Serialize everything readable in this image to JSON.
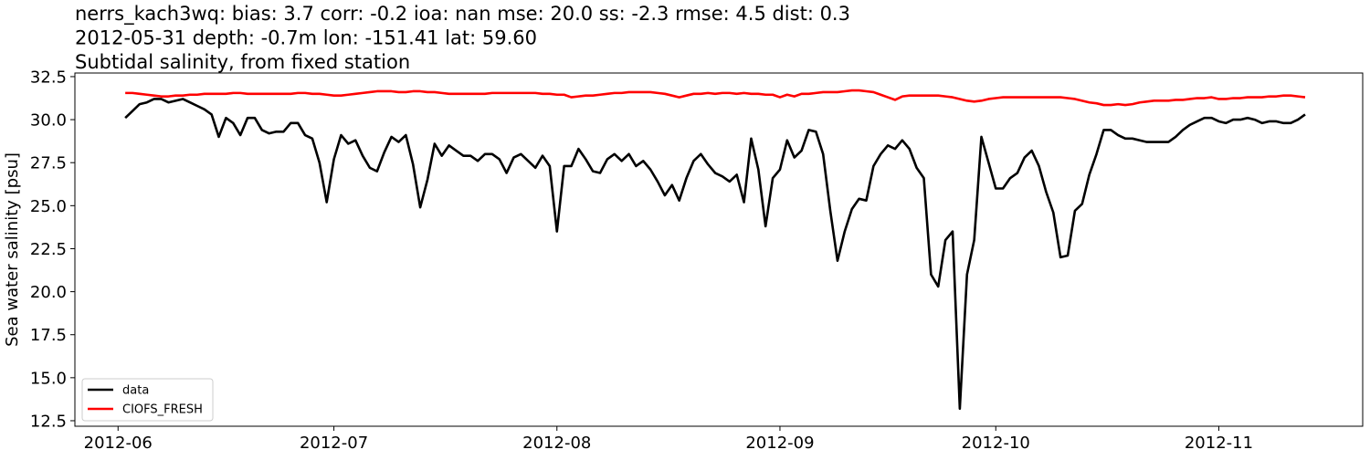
{
  "chart_data": {
    "type": "line",
    "title": [
      "nerrs_kach3wq: bias: 3.7  corr: -0.2  ioa: nan  mse: 20.0  ss: -2.3  rmse: 4.5  dist: 0.3",
      "2012-05-31 depth: -0.7m lon: -151.41 lat: 59.60",
      "Subtidal salinity, from fixed station"
    ],
    "ylabel": "Sea water salinity [psu]",
    "x": [
      "2012-06-02",
      "2012-06-03",
      "2012-06-04",
      "2012-06-05",
      "2012-06-06",
      "2012-06-07",
      "2012-06-08",
      "2012-06-09",
      "2012-06-10",
      "2012-06-11",
      "2012-06-12",
      "2012-06-13",
      "2012-06-14",
      "2012-06-15",
      "2012-06-16",
      "2012-06-17",
      "2012-06-18",
      "2012-06-19",
      "2012-06-20",
      "2012-06-21",
      "2012-06-22",
      "2012-06-23",
      "2012-06-24",
      "2012-06-25",
      "2012-06-26",
      "2012-06-27",
      "2012-06-28",
      "2012-06-29",
      "2012-06-30",
      "2012-07-01",
      "2012-07-02",
      "2012-07-03",
      "2012-07-04",
      "2012-07-05",
      "2012-07-06",
      "2012-07-07",
      "2012-07-08",
      "2012-07-09",
      "2012-07-10",
      "2012-07-11",
      "2012-07-12",
      "2012-07-13",
      "2012-07-14",
      "2012-07-15",
      "2012-07-16",
      "2012-07-17",
      "2012-07-18",
      "2012-07-19",
      "2012-07-20",
      "2012-07-21",
      "2012-07-22",
      "2012-07-23",
      "2012-07-24",
      "2012-07-25",
      "2012-07-26",
      "2012-07-27",
      "2012-07-28",
      "2012-07-29",
      "2012-07-30",
      "2012-07-31",
      "2012-08-01",
      "2012-08-02",
      "2012-08-03",
      "2012-08-04",
      "2012-08-05",
      "2012-08-06",
      "2012-08-07",
      "2012-08-08",
      "2012-08-09",
      "2012-08-10",
      "2012-08-11",
      "2012-08-12",
      "2012-08-13",
      "2012-08-14",
      "2012-08-15",
      "2012-08-16",
      "2012-08-17",
      "2012-08-18",
      "2012-08-19",
      "2012-08-20",
      "2012-08-21",
      "2012-08-22",
      "2012-08-23",
      "2012-08-24",
      "2012-08-25",
      "2012-08-26",
      "2012-08-27",
      "2012-08-28",
      "2012-08-29",
      "2012-08-30",
      "2012-08-31",
      "2012-09-01",
      "2012-09-02",
      "2012-09-03",
      "2012-09-04",
      "2012-09-05",
      "2012-09-06",
      "2012-09-07",
      "2012-09-08",
      "2012-09-09",
      "2012-09-10",
      "2012-09-11",
      "2012-09-12",
      "2012-09-13",
      "2012-09-14",
      "2012-09-15",
      "2012-09-16",
      "2012-09-17",
      "2012-09-18",
      "2012-09-19",
      "2012-09-20",
      "2012-09-21",
      "2012-09-22",
      "2012-09-23",
      "2012-09-24",
      "2012-09-25",
      "2012-09-26",
      "2012-09-27",
      "2012-09-28",
      "2012-09-29",
      "2012-09-30",
      "2012-10-01",
      "2012-10-02",
      "2012-10-03",
      "2012-10-04",
      "2012-10-05",
      "2012-10-06",
      "2012-10-07",
      "2012-10-08",
      "2012-10-09",
      "2012-10-10",
      "2012-10-11",
      "2012-10-12",
      "2012-10-13",
      "2012-10-14",
      "2012-10-15",
      "2012-10-16",
      "2012-10-17",
      "2012-10-18",
      "2012-10-19",
      "2012-10-20",
      "2012-10-21",
      "2012-10-22",
      "2012-10-23",
      "2012-10-24",
      "2012-10-25",
      "2012-10-26",
      "2012-10-27",
      "2012-10-28",
      "2012-10-29",
      "2012-10-30",
      "2012-10-31",
      "2012-11-01",
      "2012-11-02",
      "2012-11-03",
      "2012-11-04",
      "2012-11-05",
      "2012-11-06",
      "2012-11-07",
      "2012-11-08",
      "2012-11-09",
      "2012-11-10",
      "2012-11-11",
      "2012-11-12",
      "2012-11-13"
    ],
    "series": [
      {
        "name": "data",
        "color": "#000000",
        "values": [
          30.1,
          30.5,
          30.9,
          31.0,
          31.2,
          31.2,
          31.0,
          31.1,
          31.2,
          31.0,
          30.8,
          30.6,
          30.3,
          29.0,
          30.1,
          29.8,
          29.1,
          30.1,
          30.1,
          29.4,
          29.2,
          29.3,
          29.3,
          29.8,
          29.8,
          29.1,
          28.9,
          27.5,
          25.2,
          27.7,
          29.1,
          28.6,
          28.8,
          27.9,
          27.2,
          27.0,
          28.1,
          29.0,
          28.7,
          29.1,
          27.4,
          24.9,
          26.5,
          28.6,
          27.9,
          28.5,
          28.2,
          27.9,
          27.9,
          27.6,
          28.0,
          28.0,
          27.7,
          26.9,
          27.8,
          28.0,
          27.6,
          27.2,
          27.9,
          27.3,
          23.5,
          27.3,
          27.3,
          28.3,
          27.7,
          27.0,
          26.9,
          27.7,
          28.0,
          27.6,
          28.0,
          27.3,
          27.6,
          27.1,
          26.4,
          25.6,
          26.2,
          25.3,
          26.6,
          27.6,
          28.0,
          27.4,
          26.9,
          26.7,
          26.4,
          26.8,
          25.2,
          28.9,
          27.1,
          23.8,
          26.6,
          27.1,
          28.8,
          27.8,
          28.2,
          29.4,
          29.3,
          28.0,
          24.7,
          21.8,
          23.5,
          24.8,
          25.4,
          25.3,
          27.3,
          28.0,
          28.5,
          28.3,
          28.8,
          28.3,
          27.2,
          26.6,
          21.0,
          20.3,
          23.0,
          23.5,
          13.2,
          21.0,
          23.0,
          29.0,
          27.5,
          26.0,
          26.0,
          26.6,
          26.9,
          27.8,
          28.2,
          27.3,
          25.8,
          24.6,
          22.0,
          22.1,
          24.7,
          25.1,
          26.8,
          28.0,
          29.4,
          29.4,
          29.1,
          28.9,
          28.9,
          28.8,
          28.7,
          28.7,
          28.7,
          28.7,
          29.0,
          29.4,
          29.7,
          29.9,
          30.1,
          30.1,
          29.9,
          29.8,
          30.0,
          30.0,
          30.1,
          30.0,
          29.8,
          29.9,
          29.9,
          29.8,
          29.8,
          30.0,
          30.3
        ]
      },
      {
        "name": "CIOFS_FRESH",
        "color": "#ff0000",
        "values": [
          31.55,
          31.55,
          31.5,
          31.45,
          31.4,
          31.35,
          31.35,
          31.4,
          31.4,
          31.45,
          31.45,
          31.5,
          31.5,
          31.5,
          31.5,
          31.55,
          31.55,
          31.5,
          31.5,
          31.5,
          31.5,
          31.5,
          31.5,
          31.5,
          31.55,
          31.55,
          31.5,
          31.5,
          31.45,
          31.4,
          31.4,
          31.45,
          31.5,
          31.55,
          31.6,
          31.65,
          31.65,
          31.65,
          31.6,
          31.6,
          31.65,
          31.65,
          31.6,
          31.6,
          31.55,
          31.5,
          31.5,
          31.5,
          31.5,
          31.5,
          31.5,
          31.55,
          31.55,
          31.55,
          31.55,
          31.55,
          31.55,
          31.55,
          31.5,
          31.5,
          31.45,
          31.45,
          31.3,
          31.35,
          31.4,
          31.4,
          31.45,
          31.5,
          31.55,
          31.55,
          31.6,
          31.6,
          31.6,
          31.6,
          31.55,
          31.5,
          31.4,
          31.3,
          31.4,
          31.5,
          31.5,
          31.55,
          31.5,
          31.55,
          31.55,
          31.5,
          31.55,
          31.5,
          31.5,
          31.45,
          31.45,
          31.3,
          31.45,
          31.35,
          31.5,
          31.5,
          31.55,
          31.6,
          31.6,
          31.6,
          31.65,
          31.7,
          31.7,
          31.65,
          31.6,
          31.45,
          31.3,
          31.15,
          31.35,
          31.4,
          31.4,
          31.4,
          31.4,
          31.4,
          31.35,
          31.3,
          31.2,
          31.1,
          31.05,
          31.1,
          31.2,
          31.25,
          31.3,
          31.3,
          31.3,
          31.3,
          31.3,
          31.3,
          31.3,
          31.3,
          31.3,
          31.25,
          31.2,
          31.1,
          31.0,
          30.95,
          30.85,
          30.85,
          30.9,
          30.85,
          30.9,
          31.0,
          31.05,
          31.1,
          31.1,
          31.1,
          31.15,
          31.15,
          31.2,
          31.25,
          31.25,
          31.3,
          31.2,
          31.2,
          31.25,
          31.25,
          31.3,
          31.3,
          31.3,
          31.35,
          31.35,
          31.4,
          31.4,
          31.35,
          31.3
        ]
      }
    ],
    "xlim": [
      "2012-05-26",
      "2012-11-21"
    ],
    "xticks": [
      {
        "value": "2012-06-01",
        "label": "2012-06"
      },
      {
        "value": "2012-07-01",
        "label": "2012-07"
      },
      {
        "value": "2012-08-01",
        "label": "2012-08"
      },
      {
        "value": "2012-09-01",
        "label": "2012-09"
      },
      {
        "value": "2012-10-01",
        "label": "2012-10"
      },
      {
        "value": "2012-11-01",
        "label": "2012-11"
      }
    ],
    "ylim": [
      12.18,
      32.71
    ],
    "yticks": [
      12.5,
      {
        "value": 15,
        "label": "15.0"
      },
      17.5,
      {
        "value": 20,
        "label": "20.0"
      },
      22.5,
      {
        "value": 25,
        "label": "25.0"
      },
      27.5,
      {
        "value": 30,
        "label": "30.0"
      },
      32.5
    ],
    "grid": false,
    "legend_loc": "lower left"
  }
}
